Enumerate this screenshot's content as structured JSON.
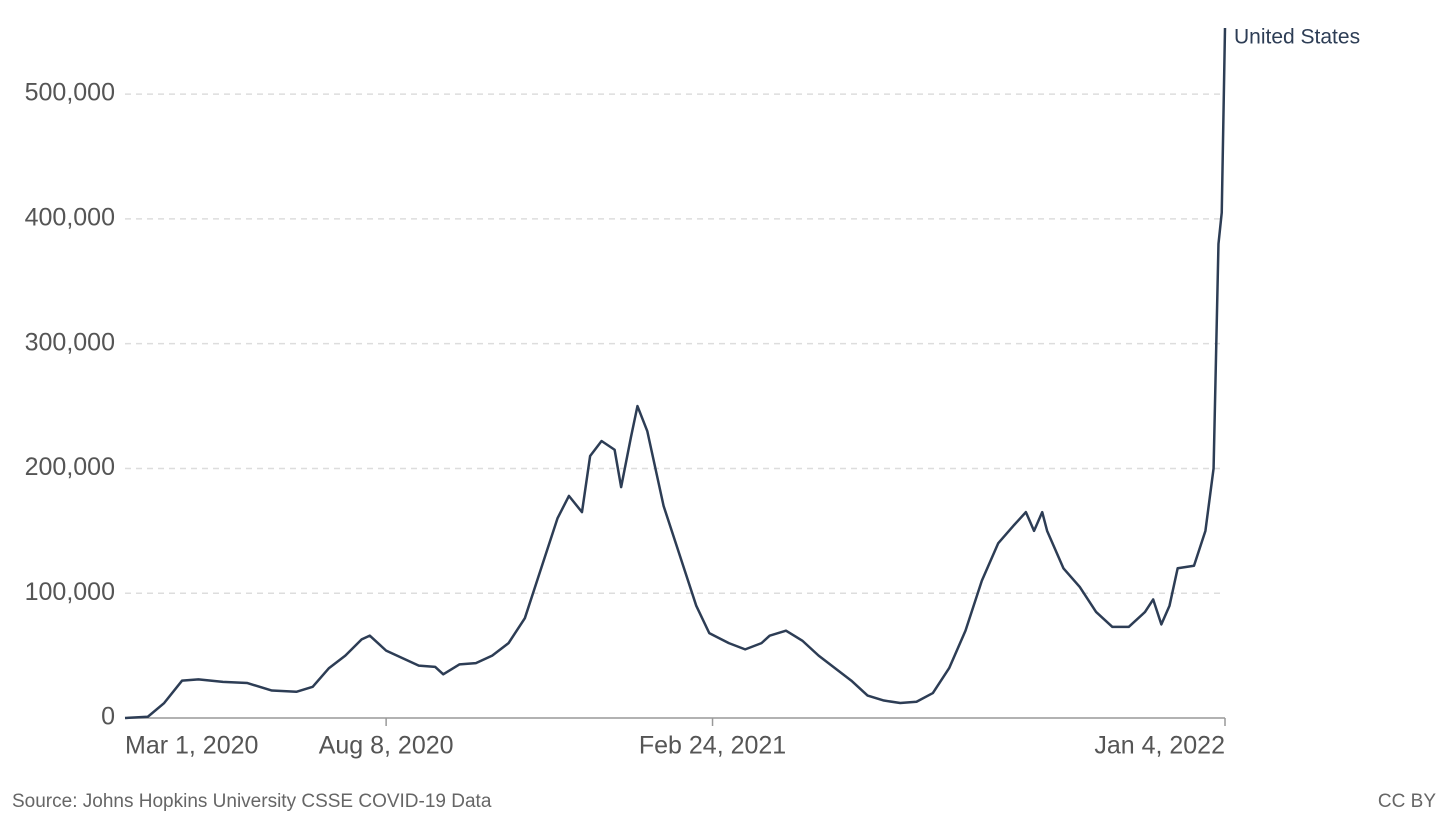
{
  "chart_data": {
    "type": "line",
    "x": [
      "2020-03-01",
      "2020-03-15",
      "2020-03-25",
      "2020-04-05",
      "2020-04-15",
      "2020-04-30",
      "2020-05-15",
      "2020-05-30",
      "2020-06-14",
      "2020-06-24",
      "2020-07-04",
      "2020-07-14",
      "2020-07-24",
      "2020-07-29",
      "2020-08-08",
      "2020-08-18",
      "2020-08-28",
      "2020-09-07",
      "2020-09-12",
      "2020-09-22",
      "2020-10-02",
      "2020-10-12",
      "2020-10-22",
      "2020-11-01",
      "2020-11-11",
      "2020-11-21",
      "2020-11-28",
      "2020-12-06",
      "2020-12-11",
      "2020-12-18",
      "2020-12-26",
      "2020-12-30",
      "2021-01-05",
      "2021-01-09",
      "2021-01-15",
      "2021-01-25",
      "2021-02-04",
      "2021-02-14",
      "2021-02-22",
      "2021-03-06",
      "2021-03-16",
      "2021-03-26",
      "2021-03-31",
      "2021-04-10",
      "2021-04-20",
      "2021-04-30",
      "2021-05-10",
      "2021-05-20",
      "2021-05-30",
      "2021-06-09",
      "2021-06-19",
      "2021-06-29",
      "2021-07-09",
      "2021-07-19",
      "2021-07-29",
      "2021-08-08",
      "2021-08-18",
      "2021-08-28",
      "2021-09-04",
      "2021-09-09",
      "2021-09-14",
      "2021-09-17",
      "2021-09-27",
      "2021-10-07",
      "2021-10-17",
      "2021-10-27",
      "2021-11-06",
      "2021-11-16",
      "2021-11-21",
      "2021-11-26",
      "2021-12-01",
      "2021-12-06",
      "2021-12-16",
      "2021-12-23",
      "2021-12-28",
      "2021-12-31",
      "2022-01-02",
      "2022-01-04"
    ],
    "series": [
      {
        "name": "United States",
        "color": "#2d3d55",
        "values": [
          0,
          1000,
          12000,
          30000,
          31000,
          29000,
          28000,
          22000,
          21000,
          25000,
          40000,
          50000,
          63000,
          66000,
          54000,
          48000,
          42000,
          41000,
          35000,
          43000,
          44000,
          50000,
          60000,
          80000,
          120000,
          160000,
          178000,
          165000,
          210000,
          222000,
          215000,
          185000,
          225000,
          250000,
          230000,
          170000,
          130000,
          90000,
          68000,
          60000,
          55000,
          60000,
          66000,
          70000,
          62000,
          50000,
          40000,
          30000,
          18000,
          14000,
          12000,
          13000,
          20000,
          40000,
          70000,
          110000,
          140000,
          155000,
          165000,
          150000,
          165000,
          150000,
          120000,
          105000,
          85000,
          73000,
          73000,
          85000,
          95000,
          75000,
          90000,
          120000,
          122000,
          150000,
          200000,
          380000,
          405000,
          553000
        ]
      }
    ],
    "xlim": [
      "2020-03-01",
      "2022-01-04"
    ],
    "xticks": [
      {
        "value": "2020-03-01",
        "label": "Mar 1, 2020"
      },
      {
        "value": "2020-08-08",
        "label": "Aug 8, 2020"
      },
      {
        "value": "2021-02-24",
        "label": "Feb 24, 2021"
      },
      {
        "value": "2022-01-04",
        "label": "Jan 4, 2022"
      }
    ],
    "ylim": [
      0,
      553000
    ],
    "yticks": [
      0,
      {
        "value": 100000,
        "label": "100,000"
      },
      {
        "value": 200000,
        "label": "200,000"
      },
      {
        "value": 300000,
        "label": "300,000"
      },
      {
        "value": 400000,
        "label": "400,000"
      },
      {
        "value": 500000,
        "label": "500,000"
      }
    ],
    "grid": true,
    "source": "Source: Johns Hopkins University CSSE COVID-19 Data",
    "license": "CC BY"
  }
}
